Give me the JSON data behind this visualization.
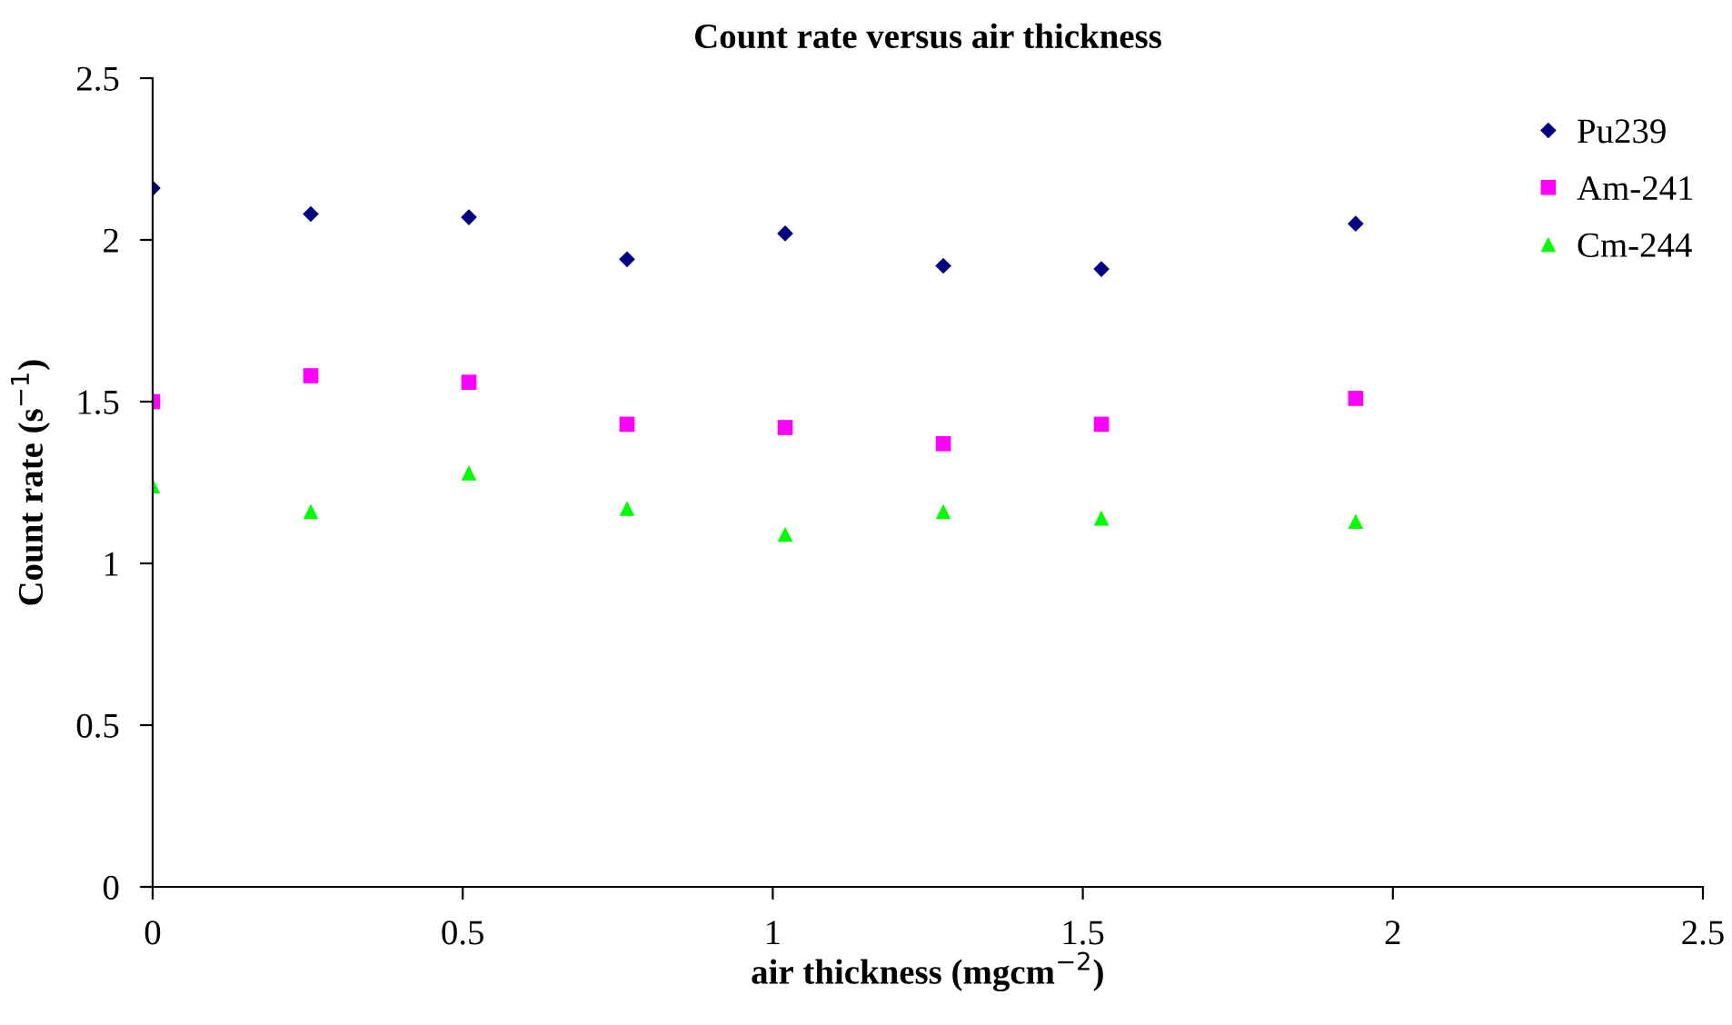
{
  "chart_data": {
    "type": "scatter",
    "title": "Count rate versus air thickness",
    "xlabel": "air thickness (mgcm$^{−2}$)",
    "ylabel": "Count rate (s$^{−1}$)",
    "x": [
      0,
      0.255,
      0.51,
      0.765,
      1.02,
      1.275,
      1.53,
      1.94
    ],
    "series": [
      {
        "name": "Pu239",
        "color": "#000080",
        "marker": "diamond",
        "values": [
          2.16,
          2.08,
          2.07,
          1.94,
          2.02,
          1.92,
          1.91,
          2.05
        ]
      },
      {
        "name": "Am-241",
        "color": "#ff00ff",
        "marker": "square",
        "values": [
          1.5,
          1.58,
          1.56,
          1.43,
          1.42,
          1.37,
          1.43,
          1.51
        ]
      },
      {
        "name": "Cm-244",
        "color": "#00ff00",
        "marker": "triangle",
        "values": [
          1.24,
          1.16,
          1.28,
          1.17,
          1.09,
          1.16,
          1.14,
          1.13
        ]
      }
    ],
    "xlim": [
      0,
      2.5
    ],
    "xticks": [
      0,
      0.5,
      1,
      1.5,
      2,
      2.5
    ],
    "ylim": [
      0,
      2.5
    ],
    "yticks": [
      0,
      0.5,
      1,
      1.5,
      2,
      2.5
    ],
    "grid": false,
    "legend": "top right"
  }
}
